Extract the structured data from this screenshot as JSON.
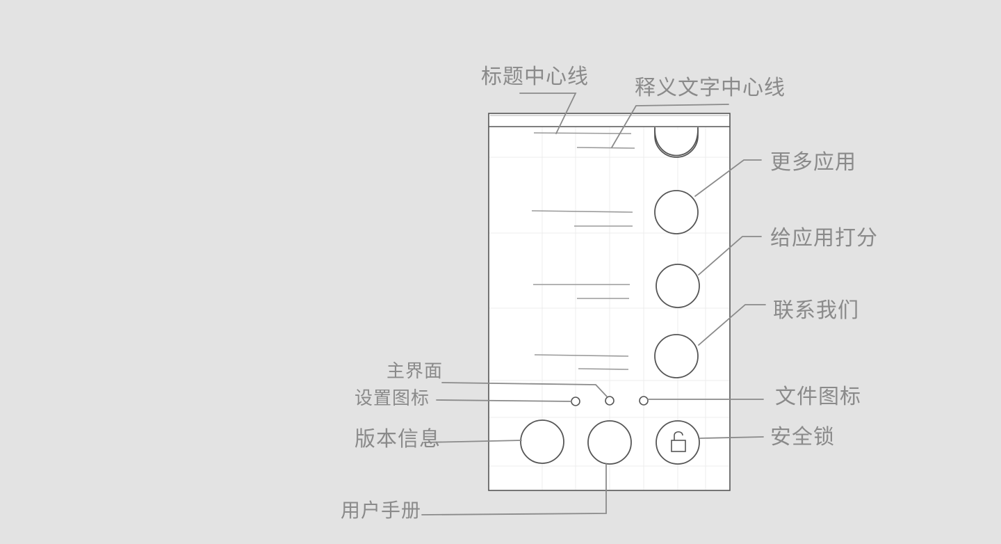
{
  "annotations": {
    "title_center_line": "标题中心线",
    "desc_text_center_line": "释义文字中心线",
    "more_apps": "更多应用",
    "rate_app": "给应用打分",
    "contact_us": "联系我们",
    "main_interface": "主界面",
    "settings_icon": "设置图标",
    "file_icon": "文件图标",
    "version_info": "版本信息",
    "security_lock": "安全锁",
    "user_manual": "用户手册"
  },
  "icons": {
    "lock": "lock-icon",
    "page_dot": "page-dot-icon",
    "round_button": "circle-icon"
  },
  "colors": {
    "background": "#e3e3e3",
    "frame_fill": "#ffffff",
    "frame_stroke": "#555555",
    "sketch_line": "#8a8a8a",
    "grid": "#eeeeee"
  }
}
